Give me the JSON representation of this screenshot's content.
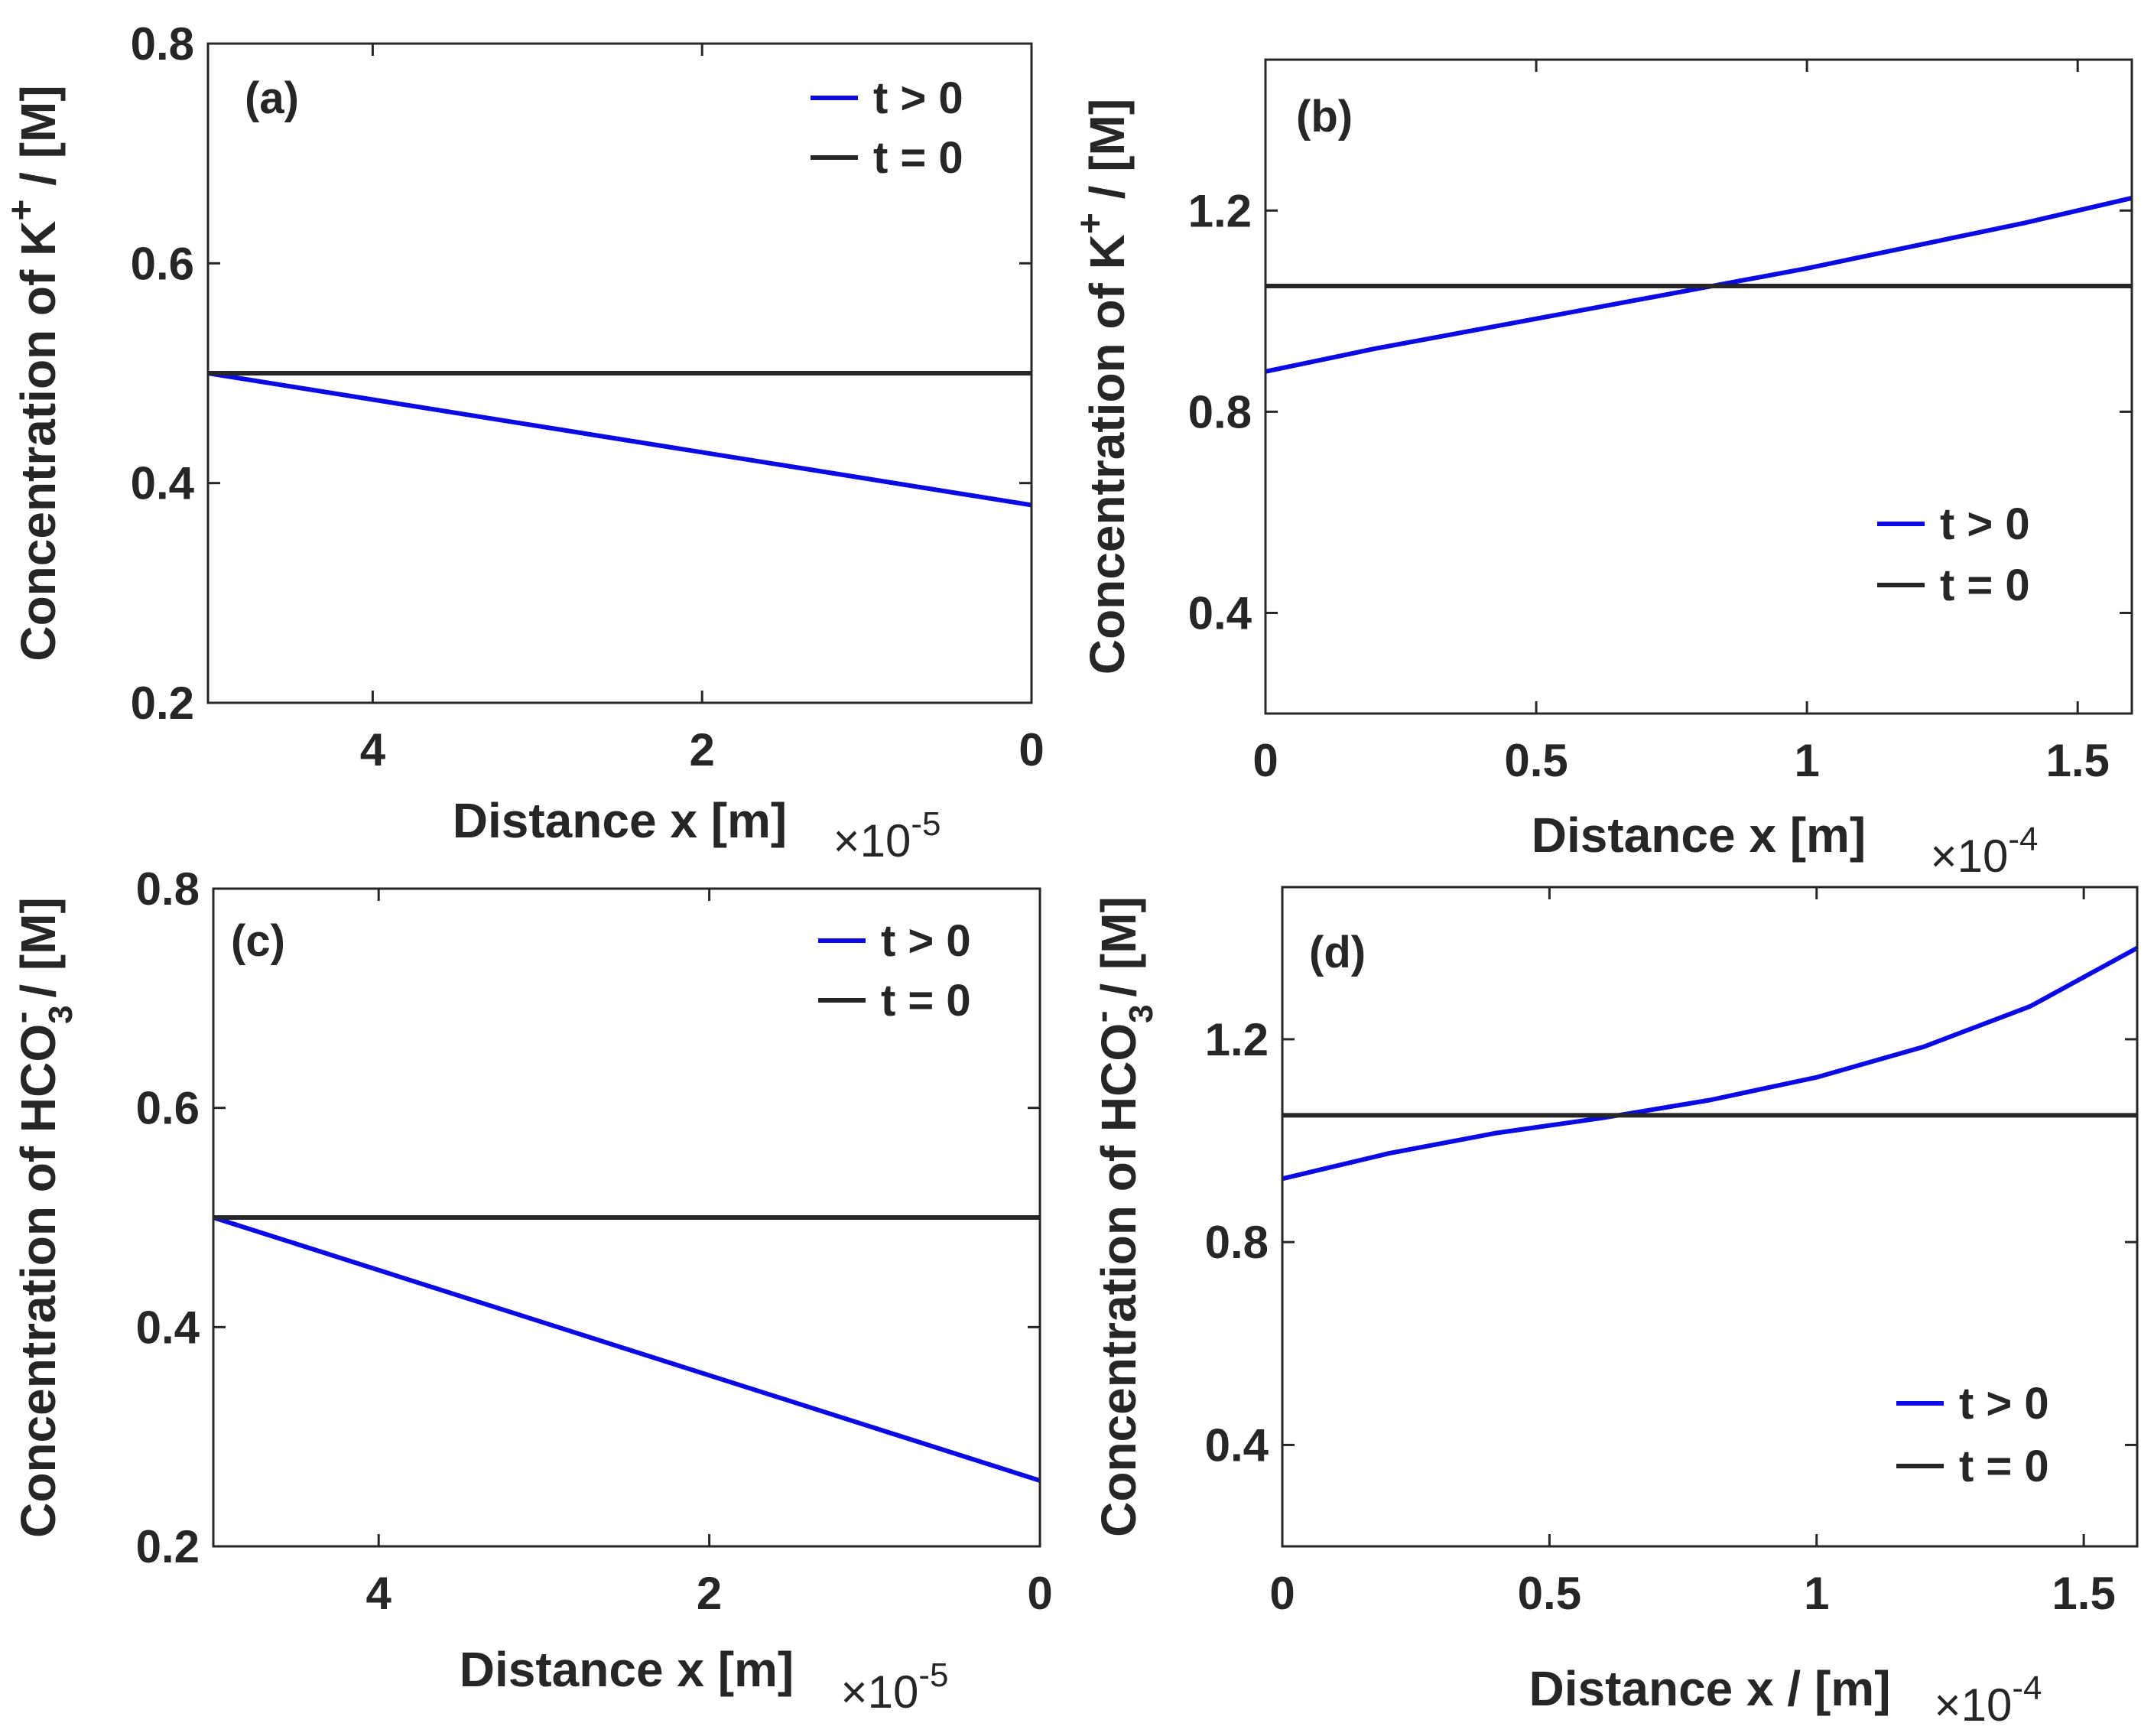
{
  "colors": {
    "blue": "#0a0ae6",
    "black": "#262626",
    "axis": "#262626"
  },
  "chart_data": [
    {
      "id": "a",
      "type": "line",
      "panel_label": "(a)",
      "xlabel": "Distance x [m]",
      "ylabel_prefix": "Concentration of ",
      "ylabel_species": "K",
      "ylabel_sup": "+",
      "ylabel_sub": "",
      "ylabel_suffix": " / [M]",
      "x_reversed": true,
      "xlim": [
        0,
        5
      ],
      "ylim": [
        0.2,
        0.8
      ],
      "xticks": [
        4,
        2,
        0
      ],
      "xtick_labels": [
        "4",
        "2",
        "0"
      ],
      "yticks": [
        0.2,
        0.4,
        0.6,
        0.8
      ],
      "ytick_labels": [
        "0.2",
        "0.4",
        "0.6",
        "0.8"
      ],
      "x_multiplier_base": "×10",
      "x_multiplier_exp": "-5",
      "legend_position": "top-right",
      "series": [
        {
          "name": "t > 0",
          "color": "#0a0ae6",
          "x": [
            5,
            0
          ],
          "y": [
            0.5,
            0.38
          ]
        },
        {
          "name": "t = 0",
          "color": "#262626",
          "x": [
            5,
            0
          ],
          "y": [
            0.5,
            0.5
          ]
        }
      ]
    },
    {
      "id": "b",
      "type": "line",
      "panel_label": "(b)",
      "xlabel": "Distance x [m]",
      "ylabel_prefix": "Concentration of ",
      "ylabel_species": "K",
      "ylabel_sup": "+",
      "ylabel_sub": "",
      "ylabel_suffix": " / [M]",
      "x_reversed": false,
      "xlim": [
        0,
        1.6
      ],
      "ylim": [
        0.2,
        1.5
      ],
      "xticks": [
        0,
        0.5,
        1,
        1.5
      ],
      "xtick_labels": [
        "0",
        "0.5",
        "1",
        "1.5"
      ],
      "yticks": [
        0.4,
        0.8,
        1.2
      ],
      "ytick_labels": [
        "0.4",
        "0.8",
        "1.2"
      ],
      "x_multiplier_base": "×10",
      "x_multiplier_exp": "-4",
      "legend_position": "bottom-right",
      "series": [
        {
          "name": "t > 0",
          "color": "#0a0ae6",
          "x": [
            0,
            0.2,
            0.4,
            0.6,
            0.8,
            1.0,
            1.2,
            1.4,
            1.6
          ],
          "y": [
            0.88,
            0.925,
            0.965,
            1.005,
            1.045,
            1.085,
            1.13,
            1.175,
            1.225
          ]
        },
        {
          "name": "t = 0",
          "color": "#262626",
          "x": [
            0,
            1.6
          ],
          "y": [
            1.05,
            1.05
          ]
        }
      ]
    },
    {
      "id": "c",
      "type": "line",
      "panel_label": "(c)",
      "xlabel": "Distance x [m]",
      "ylabel_prefix": "Concentration of ",
      "ylabel_species": "HCO",
      "ylabel_sup": "-",
      "ylabel_sub": "3",
      "ylabel_suffix": " / [M]",
      "x_reversed": true,
      "xlim": [
        0,
        5
      ],
      "ylim": [
        0.2,
        0.8
      ],
      "xticks": [
        4,
        2,
        0
      ],
      "xtick_labels": [
        "4",
        "2",
        "0"
      ],
      "yticks": [
        0.2,
        0.4,
        0.6,
        0.8
      ],
      "ytick_labels": [
        "0.2",
        "0.4",
        "0.6",
        "0.8"
      ],
      "x_multiplier_base": "×10",
      "x_multiplier_exp": "-5",
      "legend_position": "top-right",
      "series": [
        {
          "name": "t > 0",
          "color": "#0a0ae6",
          "x": [
            5,
            0
          ],
          "y": [
            0.5,
            0.26
          ]
        },
        {
          "name": "t = 0",
          "color": "#262626",
          "x": [
            5,
            0
          ],
          "y": [
            0.5,
            0.5
          ]
        }
      ]
    },
    {
      "id": "d",
      "type": "line",
      "panel_label": "(d)",
      "xlabel": "Distance x / [m]",
      "ylabel_prefix": "Concentration of ",
      "ylabel_species": "HCO",
      "ylabel_sup": "-",
      "ylabel_sub": "3",
      "ylabel_suffix": " / [M]",
      "x_reversed": false,
      "xlim": [
        0,
        1.6
      ],
      "ylim": [
        0.2,
        1.5
      ],
      "xticks": [
        0,
        0.5,
        1,
        1.5
      ],
      "xtick_labels": [
        "0",
        "0.5",
        "1",
        "1.5"
      ],
      "yticks": [
        0.4,
        0.8,
        1.2
      ],
      "ytick_labels": [
        "0.4",
        "0.8",
        "1.2"
      ],
      "x_multiplier_base": "×10",
      "x_multiplier_exp": "-4",
      "legend_position": "bottom-right",
      "series": [
        {
          "name": "t > 0",
          "color": "#0a0ae6",
          "x": [
            0,
            0.2,
            0.4,
            0.6,
            0.8,
            1.0,
            1.2,
            1.4,
            1.6
          ],
          "y": [
            0.925,
            0.975,
            1.015,
            1.045,
            1.08,
            1.125,
            1.185,
            1.265,
            1.38
          ]
        },
        {
          "name": "t = 0",
          "color": "#262626",
          "x": [
            0,
            1.6
          ],
          "y": [
            1.05,
            1.05
          ]
        }
      ]
    }
  ]
}
